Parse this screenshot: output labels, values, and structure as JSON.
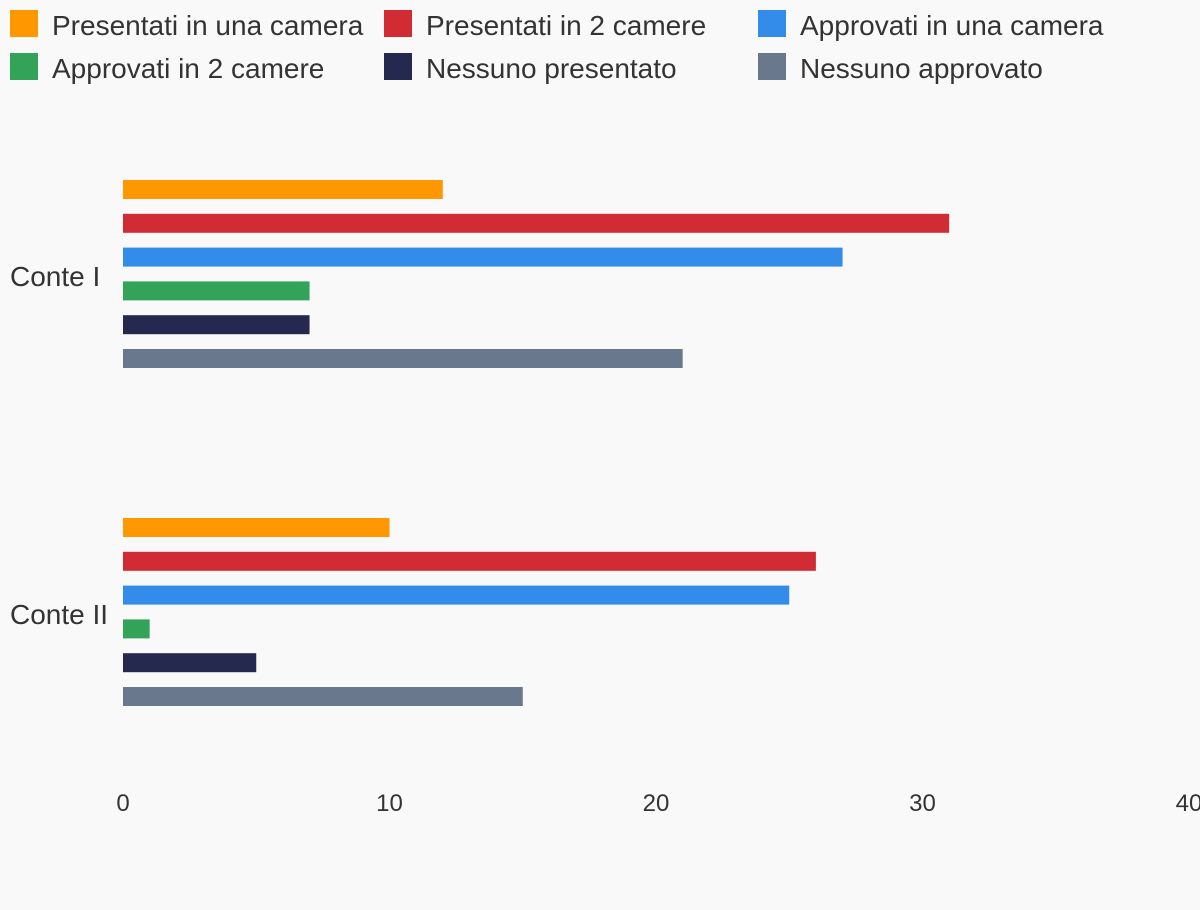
{
  "chart_data": {
    "type": "bar",
    "orientation": "horizontal",
    "categories": [
      "Conte I",
      "Conte II"
    ],
    "series": [
      {
        "name": "Presentati in una camera",
        "color": "#ff9800",
        "values": [
          12,
          10
        ]
      },
      {
        "name": "Presentati in 2 camere",
        "color": "#d12c33",
        "values": [
          31,
          26
        ]
      },
      {
        "name": "Approvati in una camera",
        "color": "#338cea",
        "values": [
          27,
          25
        ]
      },
      {
        "name": "Approvati in 2 camere",
        "color": "#34a35a",
        "values": [
          7,
          1
        ]
      },
      {
        "name": "Nessuno presentato",
        "color": "#25284f",
        "values": [
          7,
          5
        ]
      },
      {
        "name": "Nessuno approvato",
        "color": "#69788c",
        "values": [
          21,
          15
        ]
      }
    ],
    "xlim": [
      0,
      40
    ],
    "xticks": [
      "0",
      "10",
      "20",
      "30",
      "40"
    ],
    "grid": false,
    "legend_position": "top"
  }
}
